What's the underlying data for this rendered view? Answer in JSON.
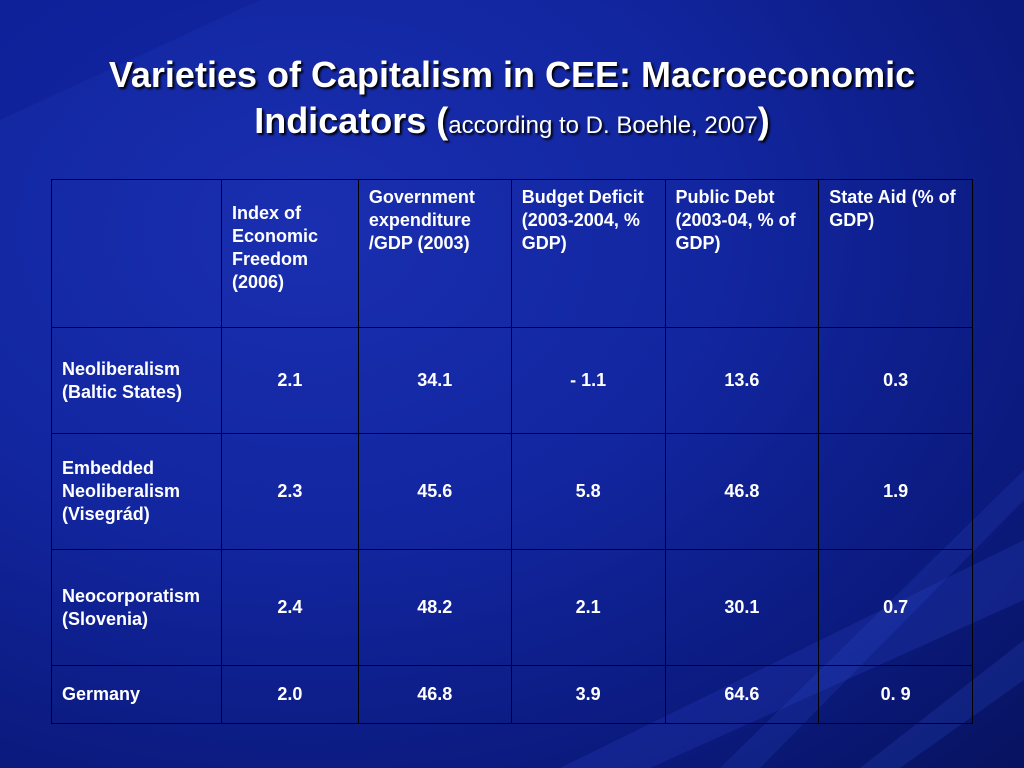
{
  "slide": {
    "title_line1": "Varieties of Capitalism in CEE: Macroeconomic",
    "title_line2_main": "Indicators (",
    "title_source": "according to D. Boehle, 2007",
    "title_close": ")"
  },
  "table": {
    "columns": [
      "",
      "Index of  Economic Freedom (2006)",
      "Government expenditure /GDP (2003)",
      "Budget Deficit (2003-2004, % GDP)",
      "Public Debt (2003-04, % of GDP)",
      "State Aid (%  of GDP)"
    ],
    "rows": [
      {
        "label": "Neoliberalism (Baltic States)",
        "values": [
          "2.1",
          "34.1",
          "- 1.1",
          "13.6",
          "0.3"
        ]
      },
      {
        "label": "Embedded Neoliberalism (Visegrád)",
        "values": [
          "2.3",
          "45.6",
          "5.8",
          "46.8",
          "1.9"
        ]
      },
      {
        "label": "Neocorporatism (Slovenia)",
        "values": [
          "2.4",
          "48.2",
          "2.1",
          "30.1",
          "0.7"
        ]
      },
      {
        "label": "Germany",
        "values": [
          "2.0",
          "46.8",
          "3.9",
          "64.6",
          "0. 9"
        ]
      }
    ]
  },
  "colors": {
    "background": "#1226a0",
    "text": "#ffffff",
    "grid": "#000000"
  }
}
